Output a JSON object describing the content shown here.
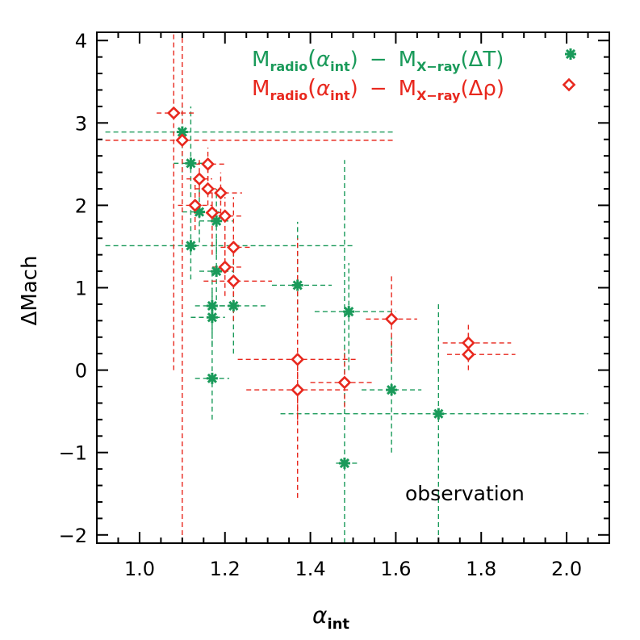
{
  "chart_data": {
    "type": "scatter",
    "xlabel": "α",
    "xlabel_sub": "int",
    "ylabel": "ΔMach",
    "xlim": [
      0.9,
      2.1
    ],
    "ylim": [
      -2.1,
      4.1
    ],
    "x_ticks": [
      {
        "value": 1.0,
        "label": "1.0"
      },
      {
        "value": 1.2,
        "label": "1.2"
      },
      {
        "value": 1.4,
        "label": "1.4"
      },
      {
        "value": 1.6,
        "label": "1.6"
      },
      {
        "value": 1.8,
        "label": "1.8"
      },
      {
        "value": 2.0,
        "label": "2.0"
      }
    ],
    "y_ticks": [
      {
        "value": -2,
        "label": "−2"
      },
      {
        "value": -1,
        "label": "−1"
      },
      {
        "value": 0,
        "label": "0"
      },
      {
        "value": 1,
        "label": "1"
      },
      {
        "value": 2,
        "label": "2"
      },
      {
        "value": 3,
        "label": "3"
      },
      {
        "value": 4,
        "label": "4"
      }
    ],
    "annotation": "observation",
    "legend_placement": "top-right",
    "series": [
      {
        "name": "M_radio(α_int) − M_X-ray(ΔT)",
        "color": "#1a9a5a",
        "marker": "asterisk",
        "legend": {
          "m1": "M",
          "s1": "radio",
          "alpha": "α",
          "s2": "int",
          "dash": "−",
          "m2": "M",
          "s3": "X−ray",
          "delta": "(ΔT)"
        },
        "points": [
          {
            "x": 1.1,
            "y": 2.89,
            "xlo": 0.92,
            "xhi": 1.6,
            "ylo": 2.4,
            "yhi": 3.2
          },
          {
            "x": 1.12,
            "y": 2.51,
            "xlo": 1.08,
            "xhi": 1.16,
            "ylo": 2.1,
            "yhi": 3.2
          },
          {
            "x": 1.14,
            "y": 1.92,
            "xlo": 1.1,
            "xhi": 1.2,
            "ylo": 1.55,
            "yhi": 2.35
          },
          {
            "x": 1.18,
            "y": 1.81,
            "xlo": 1.14,
            "xhi": 1.22,
            "ylo": 1.4,
            "yhi": 2.2
          },
          {
            "x": 1.12,
            "y": 1.51,
            "xlo": 0.92,
            "xhi": 1.5,
            "ylo": 1.1,
            "yhi": 2.0
          },
          {
            "x": 1.18,
            "y": 1.2,
            "xlo": 1.14,
            "xhi": 1.22,
            "ylo": 0.85,
            "yhi": 1.6
          },
          {
            "x": 1.17,
            "y": 0.78,
            "xlo": 1.13,
            "xhi": 1.22,
            "ylo": 0.45,
            "yhi": 1.2
          },
          {
            "x": 1.17,
            "y": 0.64,
            "xlo": 1.12,
            "xhi": 1.2,
            "ylo": 0.3,
            "yhi": 1.0
          },
          {
            "x": 1.22,
            "y": 0.78,
            "xlo": 1.17,
            "xhi": 1.3,
            "ylo": 0.2,
            "yhi": 1.4
          },
          {
            "x": 1.17,
            "y": -0.1,
            "xlo": 1.13,
            "xhi": 1.21,
            "ylo": -0.6,
            "yhi": 0.4
          },
          {
            "x": 1.37,
            "y": 1.03,
            "xlo": 1.31,
            "xhi": 1.45,
            "ylo": 0.6,
            "yhi": 1.8
          },
          {
            "x": 1.49,
            "y": 0.71,
            "xlo": 1.41,
            "xhi": 1.6,
            "ylo": 0.0,
            "yhi": 1.3
          },
          {
            "x": 1.48,
            "y": -1.13,
            "xlo": 1.46,
            "xhi": 1.51,
            "ylo": -2.1,
            "yhi": 2.55
          },
          {
            "x": 1.59,
            "y": -0.24,
            "xlo": 1.52,
            "xhi": 1.66,
            "ylo": -1.0,
            "yhi": 0.4
          },
          {
            "x": 1.7,
            "y": -0.53,
            "xlo": 1.33,
            "xhi": 2.05,
            "ylo": -2.1,
            "yhi": 0.8
          }
        ]
      },
      {
        "name": "M_radio(α_int) − M_X-ray(Δρ)",
        "color": "#e8281e",
        "marker": "diamond",
        "legend": {
          "m1": "M",
          "s1": "radio",
          "alpha": "α",
          "s2": "int",
          "dash": "−",
          "m2": "M",
          "s3": "X−ray",
          "delta": "(Δρ)"
        },
        "points": [
          {
            "x": 1.08,
            "y": 3.12,
            "xlo": 1.04,
            "xhi": 1.13,
            "ylo": 0.0,
            "yhi": 4.1
          },
          {
            "x": 1.1,
            "y": 2.79,
            "xlo": 0.92,
            "xhi": 1.6,
            "ylo": -2.1,
            "yhi": 4.1
          },
          {
            "x": 1.13,
            "y": 2.0,
            "xlo": 1.09,
            "xhi": 1.17,
            "ylo": 1.7,
            "yhi": 2.3
          },
          {
            "x": 1.14,
            "y": 2.32,
            "xlo": 1.11,
            "xhi": 1.17,
            "ylo": 2.1,
            "yhi": 2.55
          },
          {
            "x": 1.16,
            "y": 2.5,
            "xlo": 1.13,
            "xhi": 1.2,
            "ylo": 2.2,
            "yhi": 2.7
          },
          {
            "x": 1.16,
            "y": 2.2,
            "xlo": 1.13,
            "xhi": 1.19,
            "ylo": 2.0,
            "yhi": 2.45
          },
          {
            "x": 1.19,
            "y": 2.15,
            "xlo": 1.16,
            "xhi": 1.24,
            "ylo": 1.9,
            "yhi": 2.4
          },
          {
            "x": 1.17,
            "y": 1.91,
            "xlo": 1.14,
            "xhi": 1.2,
            "ylo": 1.4,
            "yhi": 2.2
          },
          {
            "x": 1.2,
            "y": 1.87,
            "xlo": 1.17,
            "xhi": 1.24,
            "ylo": 1.3,
            "yhi": 2.1
          },
          {
            "x": 1.22,
            "y": 1.49,
            "xlo": 1.19,
            "xhi": 1.26,
            "ylo": 0.9,
            "yhi": 2.1
          },
          {
            "x": 1.2,
            "y": 1.25,
            "xlo": 1.17,
            "xhi": 1.24,
            "ylo": 0.9,
            "yhi": 1.6
          },
          {
            "x": 1.22,
            "y": 1.08,
            "xlo": 1.15,
            "xhi": 1.31,
            "ylo": 0.6,
            "yhi": 1.5
          },
          {
            "x": 1.37,
            "y": 0.13,
            "xlo": 1.23,
            "xhi": 1.51,
            "ylo": -1.55,
            "yhi": 1.6
          },
          {
            "x": 1.37,
            "y": -0.24,
            "xlo": 1.25,
            "xhi": 1.49,
            "ylo": -0.6,
            "yhi": 0.2
          },
          {
            "x": 1.48,
            "y": -0.15,
            "xlo": 1.4,
            "xhi": 1.55,
            "ylo": -0.45,
            "yhi": 0.25
          },
          {
            "x": 1.59,
            "y": 0.62,
            "xlo": 1.53,
            "xhi": 1.65,
            "ylo": 0.1,
            "yhi": 1.15
          },
          {
            "x": 1.77,
            "y": 0.33,
            "xlo": 1.71,
            "xhi": 1.87,
            "ylo": 0.1,
            "yhi": 0.55
          },
          {
            "x": 1.77,
            "y": 0.19,
            "xlo": 1.72,
            "xhi": 1.88,
            "ylo": 0.0,
            "yhi": 0.45
          }
        ]
      }
    ]
  }
}
